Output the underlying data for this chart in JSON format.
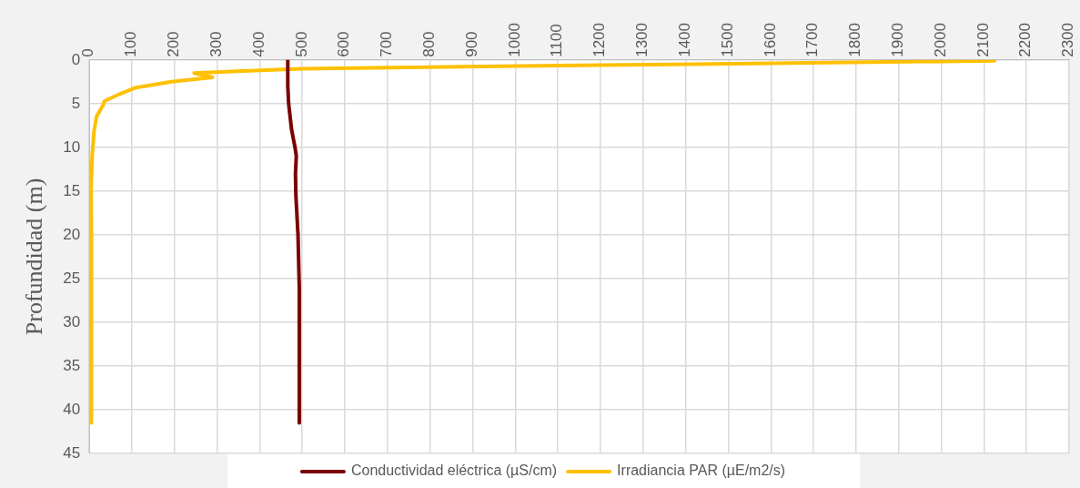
{
  "chart_data": {
    "type": "line",
    "ylabel": "Profundidad (m)",
    "xlim": [
      0,
      2300
    ],
    "xticks": [
      0,
      100,
      200,
      300,
      400,
      500,
      600,
      700,
      800,
      900,
      1000,
      1100,
      1200,
      1300,
      1400,
      1500,
      1600,
      1700,
      1800,
      1900,
      2000,
      2100,
      2200,
      2300
    ],
    "ylim": [
      45,
      0
    ],
    "yticks": [
      0,
      5,
      10,
      15,
      20,
      25,
      30,
      35,
      40,
      45
    ],
    "grid": true,
    "legend": "bottom",
    "marker": "none",
    "line_style": "solid",
    "series": [
      {
        "name": "Conductividad eléctrica (µS/cm)",
        "color": "#7b0000",
        "x": [
          466,
          466,
          468,
          475,
          483,
          486,
          484,
          485,
          490,
          493,
          493
        ],
        "values": [
          0,
          3,
          5,
          8,
          10,
          11,
          13,
          15.5,
          20,
          26,
          41.5
        ]
      },
      {
        "name": "Irradiancia PAR (µE/m2/s)",
        "color": "#ffc000",
        "x": [
          2125,
          1200,
          500,
          246,
          289,
          193,
          107,
          71,
          36,
          32,
          25,
          17,
          11,
          7,
          4,
          5,
          5
        ],
        "values": [
          0.1,
          0.6,
          1.0,
          1.5,
          2.0,
          2.5,
          3.2,
          3.9,
          4.7,
          5.2,
          5.8,
          6.5,
          8.2,
          10.8,
          15,
          20,
          41.5
        ]
      }
    ]
  }
}
